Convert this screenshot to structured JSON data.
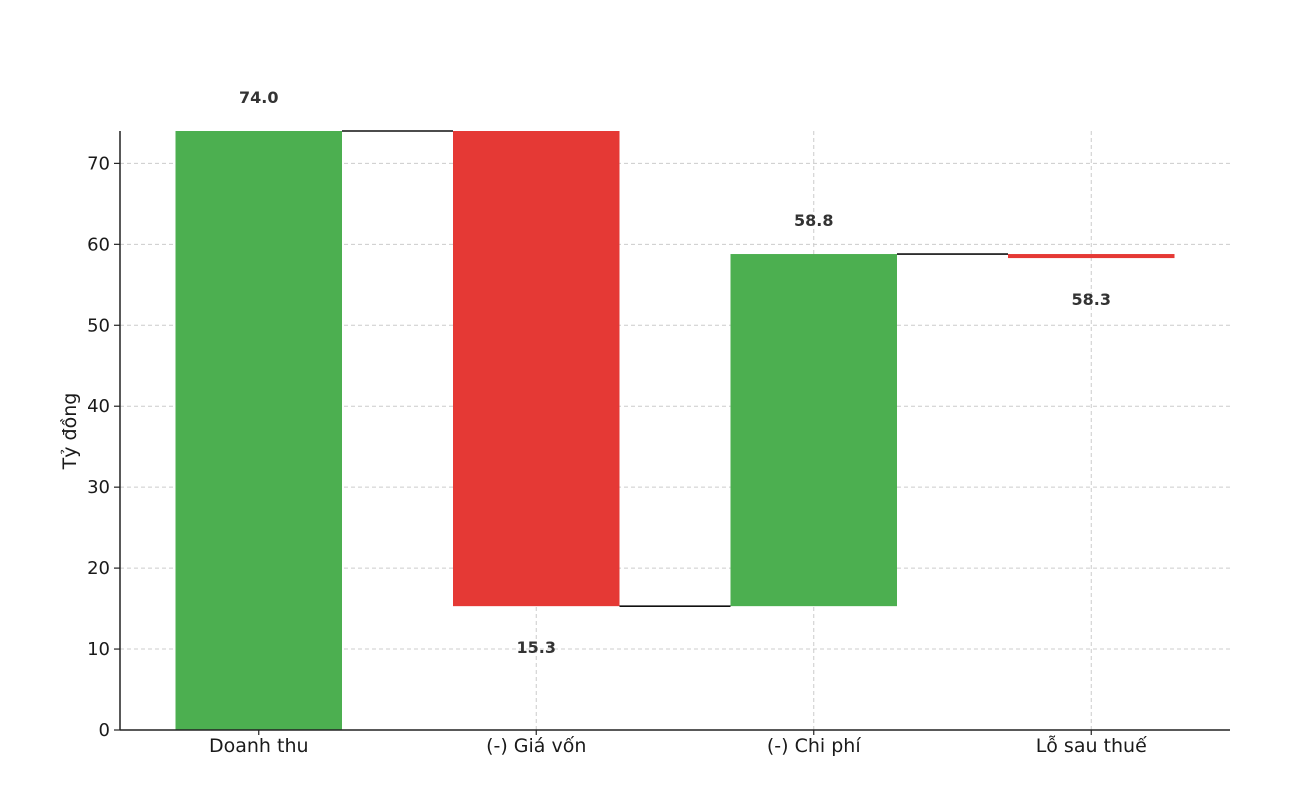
{
  "chart_data": {
    "type": "bar",
    "subtype": "waterfall",
    "title": "",
    "xlabel": "",
    "ylabel": "Tỷ đồng",
    "ylim": [
      0,
      74
    ],
    "yticks": [
      0,
      10,
      20,
      30,
      40,
      50,
      60,
      70
    ],
    "grid": true,
    "categories": [
      "Doanh thu",
      "(-) Giá vốn",
      "(-) Chi phí",
      "Lỗ sau thuế"
    ],
    "bars": [
      {
        "start": 0,
        "end": 74.0,
        "color": "#4caf50"
      },
      {
        "start": 74.0,
        "end": 15.3,
        "color": "#e53935"
      },
      {
        "start": 15.3,
        "end": 58.8,
        "color": "#4caf50"
      },
      {
        "start": 58.8,
        "end": 58.3,
        "color": "#e53935"
      }
    ],
    "data_labels": [
      "74.0",
      "15.3",
      "58.8",
      "58.3"
    ]
  }
}
